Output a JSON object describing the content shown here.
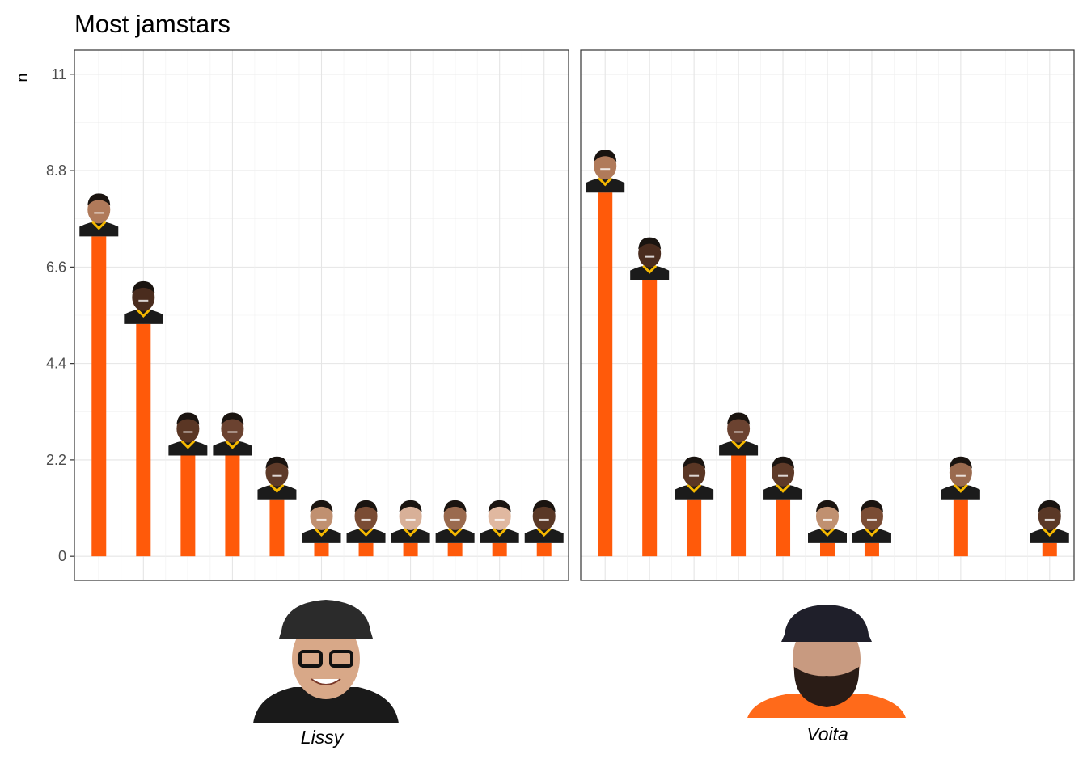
{
  "chart_data": {
    "type": "bar",
    "title": "Most jamstars",
    "xlabel": "",
    "ylabel": "n",
    "yticks": [
      "0",
      "2.2",
      "4.4",
      "6.6",
      "8.8",
      "11"
    ],
    "ylim": [
      -0.55,
      11.55
    ],
    "grid": true,
    "bar_color": "#ff5a0a",
    "panels": [
      {
        "person": "Lissy",
        "categories": [
          "p1",
          "p2",
          "p3",
          "p4",
          "p5",
          "p6",
          "p7",
          "p8",
          "p9",
          "p10",
          "p11"
        ],
        "values": [
          7,
          5,
          2,
          2,
          1,
          0,
          0,
          0,
          0,
          0,
          0
        ]
      },
      {
        "person": "Voita",
        "categories": [
          "p1",
          "p2",
          "p3",
          "p4",
          "p5",
          "p6",
          "p7",
          "p8",
          "p9",
          "p10",
          "p11"
        ],
        "values": [
          8,
          6,
          1,
          2,
          1,
          0,
          0,
          null,
          1,
          null,
          0
        ]
      }
    ]
  }
}
